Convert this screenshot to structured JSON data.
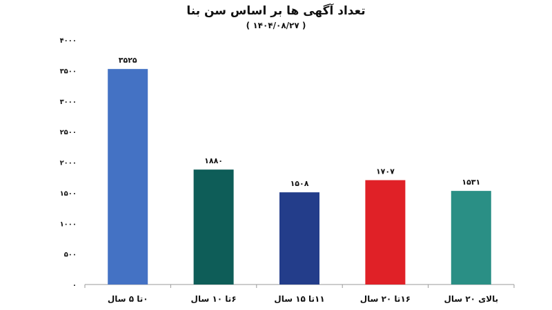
{
  "chart_data": {
    "type": "bar",
    "title": "تعداد آگهی ها بر اساس سن بنا",
    "subtitle": "( ۱۴۰۴/۰۸/۲۷ )",
    "xlabel": "",
    "ylabel": "",
    "ylim": [
      0,
      4000
    ],
    "yticks": [
      0,
      500,
      1000,
      1500,
      2000,
      2500,
      3000,
      3500,
      4000
    ],
    "ytick_labels": [
      "۰",
      "۵۰۰",
      "۱۰۰۰",
      "۱۵۰۰",
      "۲۰۰۰",
      "۲۵۰۰",
      "۳۰۰۰",
      "۳۵۰۰",
      "۴۰۰۰"
    ],
    "grid": false,
    "categories": [
      "۰تا ۵ سال",
      "۶تا ۱۰ سال",
      "۱۱تا ۱۵ سال",
      "۱۶تا ۲۰ سال",
      "بالای ۲۰ سال"
    ],
    "values": [
      3525,
      1880,
      1508,
      1707,
      1531
    ],
    "value_labels": [
      "۳۵۲۵",
      "۱۸۸۰",
      "۱۵۰۸",
      "۱۷۰۷",
      "۱۵۳۱"
    ],
    "colors": [
      "#4472c4",
      "#0e5d58",
      "#233d8a",
      "#e02127",
      "#2a8f85"
    ]
  }
}
